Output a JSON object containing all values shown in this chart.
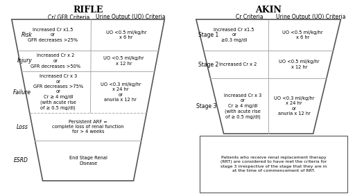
{
  "title_rifle": "RIFLE",
  "title_akin": "AKIN",
  "rifle_col1_header": "Cr/ GFR Criteria",
  "rifle_col2_header": "Urine Output (UO) Criteria",
  "akin_col1_header": "Cr Criteria",
  "akin_col2_header": "Urine Output (UO) Criteria",
  "rifle_rows": [
    {
      "label": "Risk",
      "underline_char": "R",
      "col1": "Increased Cr x1.5\nor\nGFR decreases >25%",
      "col2": "UO <0.5 ml/kg/hr\nx 6 hr"
    },
    {
      "label": "Injury",
      "underline_char": "I",
      "col1": "Increased Cr x 2\nor\nGFR decreases >50%",
      "col2": "UO <0.5 ml/kg/hr\nx 12 hr"
    },
    {
      "label": "Failure",
      "underline_char": "F",
      "col1": "Increased Cr x 3\nor\nGFR decreases >75%\nor\nCr ≥ 4 mg/dl\n(with acute rise\nof ≥ 0.5 mg/dl)",
      "col2": "UO <0.3 ml/kg/hr\nx 24 hr\nor\nanuria x 12 hr"
    },
    {
      "label": "Loss",
      "underline_char": "L",
      "col1": "Persistent ARF =\ncomplete loss of renal function\nfor > 4 weeks",
      "col2": ""
    },
    {
      "label": "ESRD",
      "underline_char": "E",
      "col1": "End Stage Renal\nDisease",
      "col2": ""
    }
  ],
  "akin_rows": [
    {
      "label": "Stage 1",
      "col1": "Increased Cr x1.5\nor\n≥0.3 mg/dl",
      "col2": "UO <0.5 ml/kg/hr\nx 6 hr"
    },
    {
      "label": "Stage 2",
      "col1": "Increased Cr x 2",
      "col2": "UO <0.5 ml/kg/hr\nx 12 hr"
    },
    {
      "label": "Stage 3",
      "col1": "Increased Cr x 3\nor\nCr ≥ 4 mg/dl\n(with acute rise\nof ≥ 0.5 mg/dl)",
      "col2": "UO <0.3 ml/kg/hr\nx 24 hr\nor\nanuria x 12 hr"
    }
  ],
  "akin_note": "Patients who receive renal replacement therapy\n(RRT) are considered to have met the criteria for\nstage 3 irrespective of the stage that they are in\nat the time of commencement of RRT.",
  "bg_color": "#f0efed",
  "trapezoid_fill": "#f0efed",
  "border_color": "#555555",
  "text_color": "#333333",
  "line_color": "#aaaaaa"
}
